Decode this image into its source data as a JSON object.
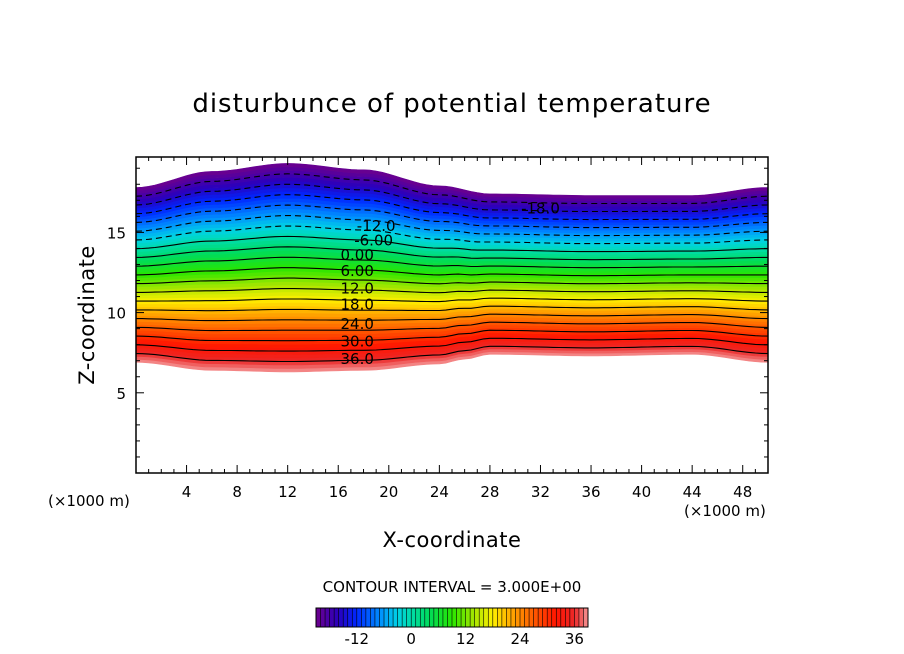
{
  "chart_data": {
    "type": "contour",
    "title": "disturbunce of potential temperature",
    "xlabel": "X-coordinate",
    "ylabel": "Z-coordinate",
    "x_unit": "(×1000 m)",
    "z_unit": "(×1000 m)",
    "xlim": [
      0,
      50
    ],
    "ylim": [
      0,
      19.7
    ],
    "xticks": [
      "4",
      "8",
      "12",
      "16",
      "20",
      "24",
      "28",
      "32",
      "36",
      "40",
      "44",
      "48"
    ],
    "yticks": [
      "5",
      "10",
      "15"
    ],
    "contour_interval_text": "CONTOUR INTERVAL = 3.000E+00",
    "contour_interval": 3.0,
    "value_range": [
      -21,
      39
    ],
    "contour_labels": [
      {
        "text": "-18.0",
        "x": 32.0,
        "z": 16.5
      },
      {
        "text": "-12.0",
        "x": 19.0,
        "z": 15.4
      },
      {
        "text": "-6.00",
        "x": 18.8,
        "z": 14.5
      },
      {
        "text": "0.00",
        "x": 17.5,
        "z": 13.6
      },
      {
        "text": "6.00",
        "x": 17.5,
        "z": 12.6
      },
      {
        "text": "12.0",
        "x": 17.5,
        "z": 11.5
      },
      {
        "text": "18.0",
        "x": 17.5,
        "z": 10.5
      },
      {
        "text": "24.0",
        "x": 17.5,
        "z": 9.3
      },
      {
        "text": "30.0",
        "x": 17.5,
        "z": 8.2
      },
      {
        "text": "36.0",
        "x": 17.5,
        "z": 7.1
      }
    ],
    "field": {
      "top_boundary": [
        {
          "x": 0,
          "z": 17.8
        },
        {
          "x": 6,
          "z": 18.8
        },
        {
          "x": 12,
          "z": 19.3
        },
        {
          "x": 18,
          "z": 18.9
        },
        {
          "x": 24,
          "z": 17.9
        },
        {
          "x": 28,
          "z": 17.4
        },
        {
          "x": 36,
          "z": 17.3
        },
        {
          "x": 44,
          "z": 17.3
        },
        {
          "x": 50,
          "z": 17.8
        }
      ],
      "bottom_boundary": [
        {
          "x": 0,
          "z": 6.9
        },
        {
          "x": 6,
          "z": 6.4
        },
        {
          "x": 12,
          "z": 6.3
        },
        {
          "x": 18,
          "z": 6.4
        },
        {
          "x": 24,
          "z": 6.8
        },
        {
          "x": 26,
          "z": 7.1
        },
        {
          "x": 28,
          "z": 7.4
        },
        {
          "x": 36,
          "z": 7.3
        },
        {
          "x": 44,
          "z": 7.4
        },
        {
          "x": 50,
          "z": 6.9
        }
      ]
    },
    "colorbar": {
      "ticks": [
        "-12",
        "0",
        "12",
        "24",
        "36"
      ],
      "tick_values": [
        -12,
        0,
        12,
        24,
        36
      ],
      "range": [
        -21,
        39
      ]
    },
    "colors": {
      "cold": "#5a0080",
      "mid": "#00d0a0",
      "warm": "#ff2020",
      "edge": "#f08080"
    }
  }
}
